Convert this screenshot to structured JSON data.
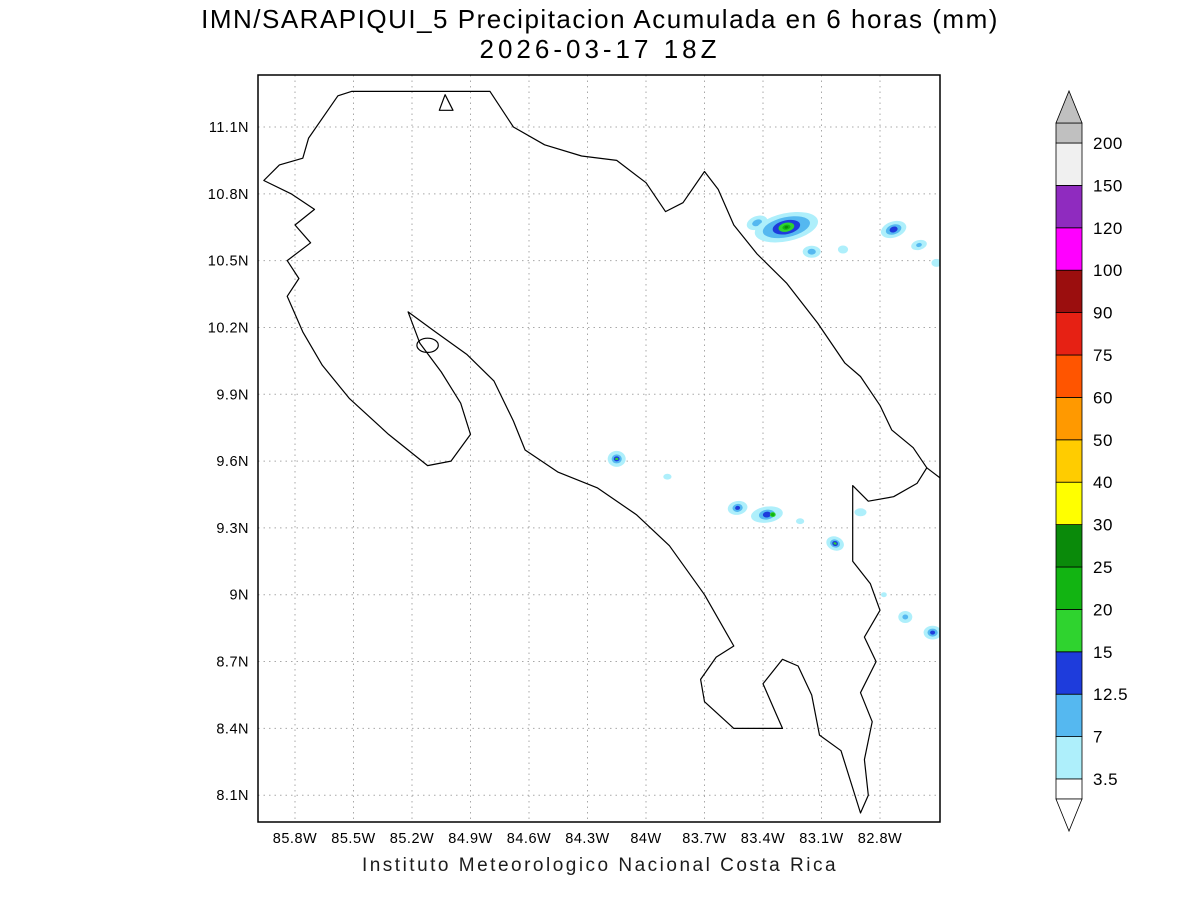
{
  "page": {
    "title_line1": "IMN/SARAPIQUI_5 Precipitacion Acumulada en 6 horas (mm)",
    "title_line2": "2026-03-17 18Z",
    "footer": "Instituto Meteorologico Nacional Costa Rica"
  },
  "map": {
    "lat_tick_labels": [
      "11.1N",
      "10.8N",
      "10.5N",
      "10.2N",
      "9.9N",
      "9.6N",
      "9.3N",
      "9N",
      "8.7N",
      "8.4N",
      "8.1N"
    ],
    "lat_tick_values": [
      11.1,
      10.8,
      10.5,
      10.2,
      9.9,
      9.6,
      9.3,
      9.0,
      8.7,
      8.4,
      8.1
    ],
    "lon_tick_labels": [
      "85.8W",
      "85.5W",
      "85.2W",
      "84.9W",
      "84.6W",
      "84.3W",
      "84W",
      "83.7W",
      "83.4W",
      "83.1W",
      "82.8W"
    ],
    "lon_tick_values": [
      85.8,
      85.5,
      85.2,
      84.9,
      84.6,
      84.3,
      84.0,
      83.7,
      83.4,
      83.1,
      82.8
    ],
    "coastline_main": [
      [
        85.73,
        11.05
      ],
      [
        85.58,
        11.24
      ],
      [
        85.51,
        11.26
      ],
      [
        84.8,
        11.26
      ],
      [
        84.68,
        11.1
      ],
      [
        84.52,
        11.02
      ],
      [
        84.33,
        10.97
      ],
      [
        84.15,
        10.95
      ],
      [
        84.0,
        10.85
      ],
      [
        83.9,
        10.72
      ],
      [
        83.81,
        10.76
      ],
      [
        83.7,
        10.9
      ],
      [
        83.63,
        10.82
      ],
      [
        83.55,
        10.66
      ],
      [
        83.43,
        10.53
      ],
      [
        83.28,
        10.4
      ],
      [
        83.12,
        10.22
      ],
      [
        82.98,
        10.04
      ],
      [
        82.9,
        9.98
      ],
      [
        82.8,
        9.85
      ],
      [
        82.74,
        9.74
      ],
      [
        82.63,
        9.66
      ],
      [
        82.56,
        9.57
      ],
      [
        82.61,
        9.5
      ],
      [
        82.73,
        9.44
      ],
      [
        82.86,
        9.42
      ],
      [
        82.94,
        9.49
      ],
      [
        82.94,
        9.15
      ],
      [
        82.85,
        9.05
      ],
      [
        82.8,
        8.93
      ],
      [
        82.88,
        8.81
      ],
      [
        82.82,
        8.7
      ],
      [
        82.9,
        8.56
      ],
      [
        82.84,
        8.43
      ],
      [
        82.88,
        8.26
      ],
      [
        82.86,
        8.1
      ],
      [
        82.9,
        8.02
      ],
      [
        83.0,
        8.3
      ],
      [
        83.11,
        8.37
      ],
      [
        83.15,
        8.55
      ],
      [
        83.22,
        8.68
      ],
      [
        83.3,
        8.71
      ],
      [
        83.4,
        8.6
      ],
      [
        83.33,
        8.46
      ],
      [
        83.3,
        8.4
      ],
      [
        83.55,
        8.4
      ],
      [
        83.7,
        8.52
      ],
      [
        83.72,
        8.62
      ],
      [
        83.64,
        8.72
      ],
      [
        83.55,
        8.77
      ],
      [
        83.7,
        9.0
      ],
      [
        83.88,
        9.22
      ],
      [
        84.05,
        9.36
      ],
      [
        84.25,
        9.48
      ],
      [
        84.45,
        9.55
      ],
      [
        84.62,
        9.65
      ],
      [
        84.68,
        9.78
      ],
      [
        84.78,
        9.96
      ],
      [
        84.92,
        10.08
      ],
      [
        85.08,
        10.18
      ],
      [
        85.22,
        10.27
      ],
      [
        85.16,
        10.13
      ],
      [
        85.05,
        10.0
      ],
      [
        84.95,
        9.86
      ],
      [
        84.9,
        9.72
      ],
      [
        85.0,
        9.6
      ],
      [
        85.12,
        9.58
      ],
      [
        85.32,
        9.72
      ],
      [
        85.52,
        9.88
      ],
      [
        85.66,
        10.03
      ],
      [
        85.76,
        10.18
      ],
      [
        85.84,
        10.34
      ],
      [
        85.78,
        10.42
      ],
      [
        85.84,
        10.5
      ],
      [
        85.72,
        10.58
      ],
      [
        85.8,
        10.66
      ],
      [
        85.7,
        10.73
      ],
      [
        85.82,
        10.8
      ],
      [
        85.96,
        10.86
      ],
      [
        85.88,
        10.93
      ],
      [
        85.76,
        10.96
      ]
    ],
    "islands": [
      {
        "lon": 85.12,
        "lat": 10.12,
        "rx_deg": 0.055,
        "ry_deg": 0.032
      }
    ],
    "markers": [
      {
        "type": "triangle",
        "points": [
          [
            85.03,
            11.245
          ],
          [
            84.99,
            11.175
          ],
          [
            85.06,
            11.175
          ]
        ]
      }
    ],
    "extra_coast_segments": [
      [
        [
          82.56,
          9.57
        ],
        [
          82.44,
          9.49
        ]
      ]
    ],
    "precip_cells": [
      {
        "lon": 83.43,
        "lat": 10.67,
        "rot": -20,
        "rings": [
          [
            3.5,
            0.055,
            0.03
          ],
          [
            7,
            0.026,
            0.014
          ]
        ]
      },
      {
        "lon": 83.28,
        "lat": 10.65,
        "rot": -12,
        "rings": [
          [
            3.5,
            0.165,
            0.063
          ],
          [
            7,
            0.123,
            0.045
          ],
          [
            12.5,
            0.072,
            0.031
          ],
          [
            15,
            0.041,
            0.02
          ],
          [
            20,
            0.021,
            0.011
          ],
          [
            25,
            0.01,
            0.006
          ]
        ]
      },
      {
        "lon": 83.15,
        "lat": 10.54,
        "rot": 0,
        "rings": [
          [
            3.5,
            0.046,
            0.027
          ],
          [
            7,
            0.021,
            0.013
          ]
        ]
      },
      {
        "lon": 82.99,
        "lat": 10.55,
        "rot": 0,
        "rings": [
          [
            3.5,
            0.026,
            0.018
          ]
        ]
      },
      {
        "lon": 82.73,
        "lat": 10.64,
        "rot": -18,
        "rings": [
          [
            3.5,
            0.067,
            0.036
          ],
          [
            7,
            0.041,
            0.022
          ],
          [
            12.5,
            0.021,
            0.013
          ]
        ]
      },
      {
        "lon": 82.6,
        "lat": 10.57,
        "rot": -15,
        "rings": [
          [
            3.5,
            0.041,
            0.022
          ],
          [
            7,
            0.015,
            0.009
          ]
        ]
      },
      {
        "lon": 82.51,
        "lat": 10.49,
        "rot": 0,
        "rings": [
          [
            3.5,
            0.026,
            0.018
          ]
        ]
      },
      {
        "lon": 84.15,
        "lat": 9.61,
        "rot": 0,
        "rings": [
          [
            3.5,
            0.046,
            0.036
          ],
          [
            7,
            0.026,
            0.02
          ],
          [
            12.5,
            0.015,
            0.011
          ],
          [
            15,
            0.008,
            0.005
          ]
        ]
      },
      {
        "lon": 83.89,
        "lat": 9.53,
        "rot": 0,
        "rings": [
          [
            3.5,
            0.021,
            0.013
          ]
        ]
      },
      {
        "lon": 83.53,
        "lat": 9.39,
        "rot": -10,
        "rings": [
          [
            3.5,
            0.051,
            0.031
          ],
          [
            7,
            0.026,
            0.018
          ],
          [
            12.5,
            0.013,
            0.009
          ]
        ]
      },
      {
        "lon": 83.38,
        "lat": 9.36,
        "rot": -8,
        "rings": [
          [
            3.5,
            0.082,
            0.036
          ],
          [
            7,
            0.041,
            0.022
          ],
          [
            12.5,
            0.021,
            0.013
          ]
        ]
      },
      {
        "lon": 83.35,
        "lat": 9.36,
        "rot": 0,
        "rings": [
          [
            15,
            0.015,
            0.011
          ],
          [
            20,
            0.009,
            0.007
          ]
        ]
      },
      {
        "lon": 83.21,
        "lat": 9.33,
        "rot": 0,
        "rings": [
          [
            3.5,
            0.021,
            0.013
          ]
        ]
      },
      {
        "lon": 83.03,
        "lat": 9.23,
        "rot": 20,
        "rings": [
          [
            3.5,
            0.046,
            0.031
          ],
          [
            7,
            0.026,
            0.018
          ],
          [
            12.5,
            0.015,
            0.011
          ],
          [
            15,
            0.008,
            0.005
          ]
        ]
      },
      {
        "lon": 82.9,
        "lat": 9.37,
        "rot": 0,
        "rings": [
          [
            3.5,
            0.031,
            0.018
          ]
        ]
      },
      {
        "lon": 82.78,
        "lat": 9.0,
        "rot": 0,
        "rings": [
          [
            3.5,
            0.015,
            0.011
          ]
        ]
      },
      {
        "lon": 82.67,
        "lat": 8.9,
        "rot": 0,
        "rings": [
          [
            3.5,
            0.036,
            0.027
          ],
          [
            7,
            0.015,
            0.011
          ]
        ]
      },
      {
        "lon": 82.53,
        "lat": 8.83,
        "rot": 0,
        "rings": [
          [
            3.5,
            0.046,
            0.031
          ],
          [
            7,
            0.026,
            0.018
          ],
          [
            12.5,
            0.013,
            0.009
          ]
        ]
      }
    ]
  },
  "colorbar": {
    "labels": [
      "200",
      "150",
      "120",
      "100",
      "90",
      "75",
      "60",
      "50",
      "40",
      "30",
      "25",
      "20",
      "15",
      "12.5",
      "7",
      "3.5"
    ],
    "levels_descending": [
      200,
      150,
      120,
      100,
      90,
      75,
      60,
      50,
      40,
      30,
      25,
      20,
      15,
      12.5,
      7,
      3.5
    ],
    "segment_colors_ascending": [
      "#aeeffb",
      "#55b8f0",
      "#1e3cdc",
      "#2fd32f",
      "#12b412",
      "#0a8a0a",
      "#ffff00",
      "#ffcc00",
      "#ff9900",
      "#ff5500",
      "#e62114",
      "#9b0e0e",
      "#ff00ff",
      "#8f2bbf",
      "#f0f0f0"
    ],
    "over_color": "#c0c0c0",
    "under_color": "#ffffff"
  },
  "style": {
    "grid_color": "#a8a8a8",
    "coast_color": "#000000",
    "frame_color": "#000000",
    "background": "#ffffff",
    "text_color": "#000000"
  }
}
